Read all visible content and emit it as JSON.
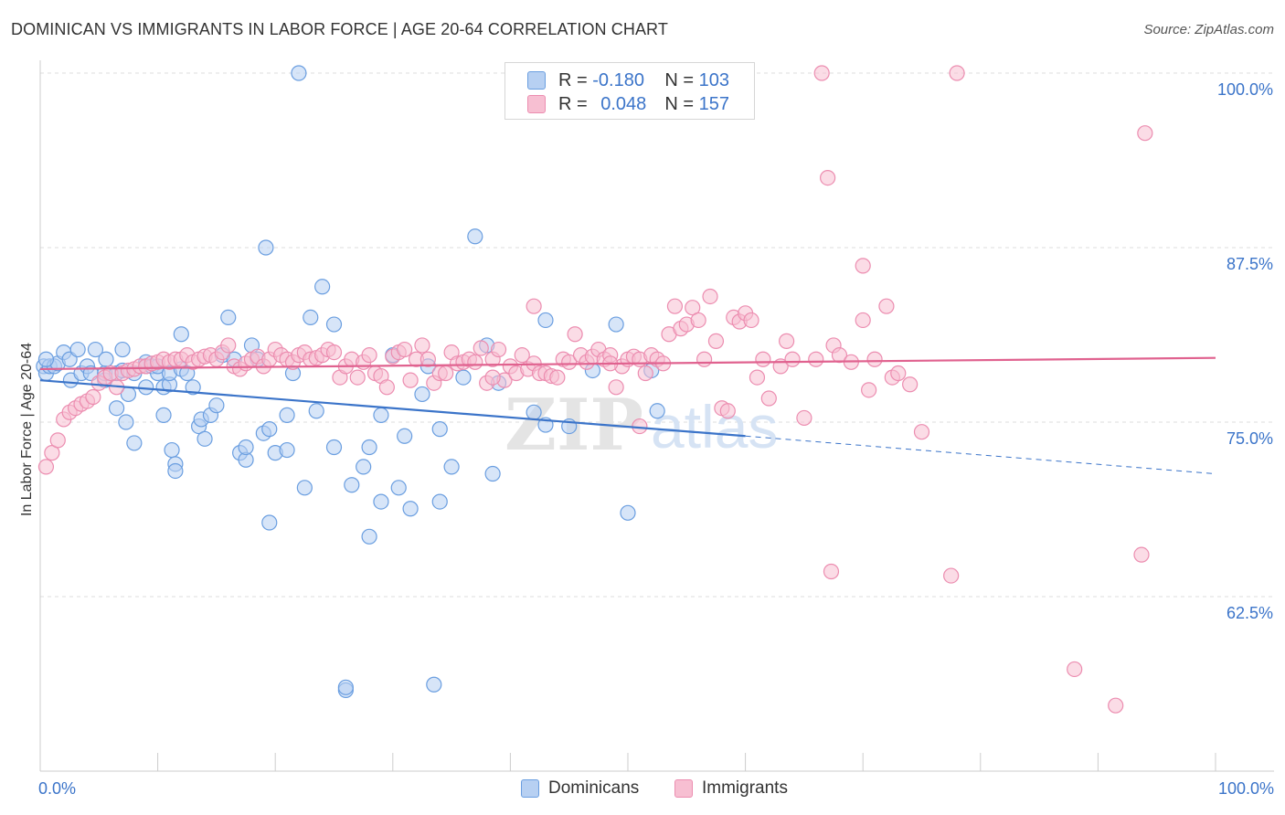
{
  "title": "DOMINICAN VS IMMIGRANTS IN LABOR FORCE | AGE 20-64 CORRELATION CHART",
  "source": "Source: ZipAtlas.com",
  "colors": {
    "blue": "#3b74c9",
    "blue_fill": "#b7d0f2",
    "blue_stroke": "#6a9ee0",
    "pink": "#e0628f",
    "pink_fill": "#f7bfd2",
    "pink_stroke": "#ec8db0",
    "grid": "#dddddd",
    "axis_text": "#3b74c9"
  },
  "legend": {
    "rows": [
      {
        "r_label": "R =",
        "r_value": "-0.180",
        "n_label": "N =",
        "n_value": "103"
      },
      {
        "r_label": "R =",
        "r_value": "0.048",
        "n_label": "N =",
        "n_value": "157"
      }
    ]
  },
  "bottom_legend": [
    "Dominicans",
    "Immigrants"
  ],
  "chart_data": {
    "type": "scatter",
    "title": "DOMINICAN VS IMMIGRANTS IN LABOR FORCE | AGE 20-64 CORRELATION CHART",
    "xlabel": "",
    "ylabel": "In Labor Force | Age 20-64",
    "xlim": [
      0,
      100
    ],
    "ylim": [
      50,
      100
    ],
    "x_tick_labels": [
      "0.0%",
      "100.0%"
    ],
    "y_ticks": [
      62.5,
      75.0,
      87.5,
      100.0
    ],
    "y_tick_labels": [
      "62.5%",
      "75.0%",
      "87.5%",
      "100.0%"
    ],
    "grid": true,
    "legend_position": "top-center",
    "watermark": "ZIPatlas",
    "series": [
      {
        "name": "Dominicans",
        "color": "#3b74c9",
        "trend": {
          "x0": 0,
          "y0": 78.0,
          "x1": 60,
          "y1": 74.0,
          "dashed_to_x": 100,
          "dashed_to_y": 71.3
        },
        "points": [
          [
            0.3,
            79
          ],
          [
            0.5,
            78.5
          ],
          [
            0.8,
            79
          ],
          [
            1.2,
            79
          ],
          [
            1.5,
            79.2
          ],
          [
            2,
            80
          ],
          [
            2.5,
            79.5
          ],
          [
            2.6,
            78
          ],
          [
            3.2,
            80.2
          ],
          [
            3.5,
            78.5
          ],
          [
            4,
            79
          ],
          [
            4.3,
            78.5
          ],
          [
            4.7,
            80.2
          ],
          [
            5.5,
            78
          ],
          [
            5.5,
            78.5
          ],
          [
            5.6,
            79.5
          ],
          [
            6.5,
            78.5
          ],
          [
            6.5,
            76
          ],
          [
            7,
            78.7
          ],
          [
            7,
            80.2
          ],
          [
            7.3,
            75
          ],
          [
            7.5,
            77
          ],
          [
            8,
            78.5
          ],
          [
            8,
            73.5
          ],
          [
            9,
            79.3
          ],
          [
            9,
            77.5
          ],
          [
            9,
            79
          ],
          [
            9.5,
            79
          ],
          [
            10,
            78.5
          ],
          [
            10,
            79
          ],
          [
            10.5,
            77.5
          ],
          [
            10.5,
            75.5
          ],
          [
            11,
            77.7
          ],
          [
            11,
            78.5
          ],
          [
            11.2,
            73
          ],
          [
            11.5,
            72
          ],
          [
            11.5,
            71.5
          ],
          [
            12,
            78.8
          ],
          [
            12,
            81.3
          ],
          [
            12.5,
            78.5
          ],
          [
            13,
            77.5
          ],
          [
            13.5,
            74.7
          ],
          [
            13.7,
            75.2
          ],
          [
            14,
            73.8
          ],
          [
            14.5,
            75.5
          ],
          [
            15,
            76.2
          ],
          [
            15.5,
            79.8
          ],
          [
            16,
            82.5
          ],
          [
            16.5,
            79.5
          ],
          [
            17,
            72.8
          ],
          [
            17.5,
            72.3
          ],
          [
            17.5,
            73.2
          ],
          [
            18,
            80.5
          ],
          [
            18.5,
            79.5
          ],
          [
            19,
            74.2
          ],
          [
            19.2,
            87.5
          ],
          [
            19.5,
            74.5
          ],
          [
            19.5,
            67.8
          ],
          [
            20,
            72.8
          ],
          [
            21,
            75.5
          ],
          [
            21,
            73
          ],
          [
            21.5,
            78.5
          ],
          [
            22,
            100
          ],
          [
            22.5,
            70.3
          ],
          [
            23,
            82.5
          ],
          [
            23.5,
            75.8
          ],
          [
            24,
            84.7
          ],
          [
            25,
            73.2
          ],
          [
            25,
            82
          ],
          [
            26,
            55.8
          ],
          [
            26.5,
            70.5
          ],
          [
            27.5,
            71.8
          ],
          [
            28,
            73.2
          ],
          [
            28,
            66.8
          ],
          [
            29,
            69.3
          ],
          [
            29,
            75.5
          ],
          [
            30,
            79.8
          ],
          [
            30.5,
            70.3
          ],
          [
            31,
            74
          ],
          [
            31.5,
            68.8
          ],
          [
            32.5,
            77
          ],
          [
            33,
            79
          ],
          [
            34,
            74.5
          ],
          [
            34,
            69.3
          ],
          [
            35,
            71.8
          ],
          [
            36,
            78.2
          ],
          [
            37,
            88.3
          ],
          [
            38,
            80.5
          ],
          [
            38.5,
            71.3
          ],
          [
            39,
            77.8
          ],
          [
            42,
            75.7
          ],
          [
            43,
            82.3
          ],
          [
            43,
            74.8
          ],
          [
            45,
            74.7
          ],
          [
            47,
            78.7
          ],
          [
            49,
            82
          ],
          [
            50,
            68.5
          ],
          [
            52,
            78.7
          ],
          [
            52.5,
            75.8
          ],
          [
            26,
            56
          ],
          [
            33.5,
            56.2
          ],
          [
            0.5,
            79.5
          ]
        ]
      },
      {
        "name": "Immigrants",
        "color": "#e0628f",
        "trend": {
          "x0": 0,
          "y0": 78.8,
          "x1": 100,
          "y1": 79.6
        },
        "points": [
          [
            0.5,
            71.8
          ],
          [
            1,
            72.8
          ],
          [
            1.5,
            73.7
          ],
          [
            2,
            75.2
          ],
          [
            2.5,
            75.7
          ],
          [
            3,
            76
          ],
          [
            3.5,
            76.3
          ],
          [
            4,
            76.5
          ],
          [
            4.5,
            76.8
          ],
          [
            5,
            77.8
          ],
          [
            5.5,
            78.2
          ],
          [
            6,
            78.5
          ],
          [
            6.5,
            77.5
          ],
          [
            7,
            78.5
          ],
          [
            7.5,
            78.7
          ],
          [
            8,
            78.8
          ],
          [
            8.5,
            79
          ],
          [
            9,
            79
          ],
          [
            9.5,
            79.2
          ],
          [
            10,
            79.3
          ],
          [
            10.5,
            79.5
          ],
          [
            11,
            79.3
          ],
          [
            11.5,
            79.5
          ],
          [
            12,
            79.5
          ],
          [
            12.5,
            79.8
          ],
          [
            13,
            79.3
          ],
          [
            13.5,
            79.5
          ],
          [
            14,
            79.7
          ],
          [
            14.5,
            79.8
          ],
          [
            15,
            79.5
          ],
          [
            15.5,
            80
          ],
          [
            16,
            80.5
          ],
          [
            16.5,
            79
          ],
          [
            17,
            78.8
          ],
          [
            17.5,
            79.2
          ],
          [
            18,
            79.5
          ],
          [
            18.5,
            79.7
          ],
          [
            19,
            79
          ],
          [
            19.5,
            79.5
          ],
          [
            20,
            80.2
          ],
          [
            20.5,
            79.8
          ],
          [
            21,
            79.5
          ],
          [
            21.5,
            79.3
          ],
          [
            22,
            79.8
          ],
          [
            22.5,
            80
          ],
          [
            23,
            79.5
          ],
          [
            23.5,
            79.6
          ],
          [
            24,
            79.8
          ],
          [
            24.5,
            80.2
          ],
          [
            25,
            80
          ],
          [
            25.5,
            78.2
          ],
          [
            26,
            79
          ],
          [
            26.5,
            79.5
          ],
          [
            27,
            78.2
          ],
          [
            27.5,
            79.3
          ],
          [
            28,
            79.8
          ],
          [
            28.5,
            78.5
          ],
          [
            29,
            78.3
          ],
          [
            29.5,
            77.5
          ],
          [
            30,
            79.7
          ],
          [
            30.5,
            80
          ],
          [
            31,
            80.2
          ],
          [
            31.5,
            78
          ],
          [
            32,
            79.5
          ],
          [
            32.5,
            80.5
          ],
          [
            33,
            79.5
          ],
          [
            33.5,
            77.8
          ],
          [
            34,
            78.5
          ],
          [
            34.5,
            78.5
          ],
          [
            35,
            80
          ],
          [
            35.5,
            79.2
          ],
          [
            36,
            79.3
          ],
          [
            36.5,
            79.5
          ],
          [
            37,
            79.3
          ],
          [
            37.5,
            80.3
          ],
          [
            38,
            77.8
          ],
          [
            38.5,
            79.5
          ],
          [
            39,
            80.2
          ],
          [
            39.5,
            78
          ],
          [
            40,
            79
          ],
          [
            40.5,
            78.5
          ],
          [
            41,
            79.8
          ],
          [
            41.5,
            78.8
          ],
          [
            42,
            79.2
          ],
          [
            42.5,
            78.5
          ],
          [
            43,
            78.5
          ],
          [
            43.5,
            78.3
          ],
          [
            44,
            78.2
          ],
          [
            44.5,
            79.5
          ],
          [
            45,
            79.3
          ],
          [
            45.5,
            81.3
          ],
          [
            46,
            79.8
          ],
          [
            46.5,
            79.3
          ],
          [
            47,
            79.7
          ],
          [
            47.5,
            80.2
          ],
          [
            48,
            79.5
          ],
          [
            48.5,
            79.8
          ],
          [
            49,
            77.5
          ],
          [
            49.5,
            79
          ],
          [
            50,
            79.5
          ],
          [
            50.5,
            79.7
          ],
          [
            51,
            79.5
          ],
          [
            51.5,
            78.5
          ],
          [
            52,
            79.8
          ],
          [
            52.5,
            79.5
          ],
          [
            53,
            79.2
          ],
          [
            53.5,
            81.3
          ],
          [
            54,
            83.3
          ],
          [
            54.5,
            81.7
          ],
          [
            55,
            82
          ],
          [
            55.5,
            83.2
          ],
          [
            56,
            82.3
          ],
          [
            56.5,
            79.5
          ],
          [
            57,
            84
          ],
          [
            57.5,
            80.8
          ],
          [
            58,
            76
          ],
          [
            58.5,
            75.8
          ],
          [
            59,
            82.5
          ],
          [
            59.5,
            82.2
          ],
          [
            60,
            82.8
          ],
          [
            60.5,
            82.3
          ],
          [
            61,
            78.2
          ],
          [
            61.5,
            79.5
          ],
          [
            62,
            76.7
          ],
          [
            63,
            79
          ],
          [
            63.5,
            80.8
          ],
          [
            64,
            79.5
          ],
          [
            65,
            75.3
          ],
          [
            66,
            79.5
          ],
          [
            67,
            92.5
          ],
          [
            67.5,
            80.5
          ],
          [
            68,
            79.8
          ],
          [
            69,
            79.3
          ],
          [
            70,
            82.3
          ],
          [
            70.5,
            77.3
          ],
          [
            71,
            79.5
          ],
          [
            72,
            83.3
          ],
          [
            72.5,
            78.2
          ],
          [
            73,
            78.5
          ],
          [
            74,
            77.7
          ],
          [
            75,
            74.3
          ],
          [
            66.5,
            100
          ],
          [
            78,
            100
          ],
          [
            94,
            95.7
          ],
          [
            70,
            86.2
          ],
          [
            67.3,
            64.3
          ],
          [
            77.5,
            64
          ],
          [
            93.7,
            65.5
          ],
          [
            88,
            57.3
          ],
          [
            91.5,
            54.7
          ],
          [
            42,
            83.3
          ],
          [
            38.5,
            78.2
          ],
          [
            48.5,
            79.2
          ],
          [
            51,
            74.7
          ]
        ]
      }
    ]
  }
}
